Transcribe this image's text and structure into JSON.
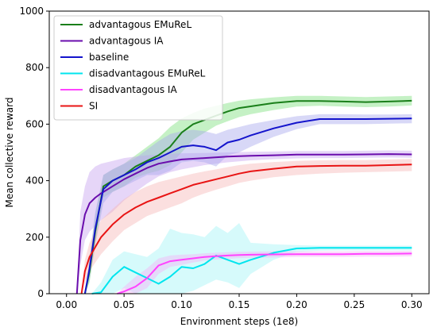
{
  "chart_data": {
    "type": "line",
    "title": "",
    "xlabel": "Environment steps (1e8)",
    "ylabel": "Mean collective reward",
    "xlim": [
      -0.015,
      0.315
    ],
    "ylim": [
      0,
      1000
    ],
    "xticks": [
      0.0,
      0.05,
      0.1,
      0.15,
      0.2,
      0.25,
      0.3
    ],
    "xtick_labels": [
      "0.00",
      "0.05",
      "0.10",
      "0.15",
      "0.20",
      "0.25",
      "0.30"
    ],
    "yticks": [
      0,
      200,
      400,
      600,
      800,
      1000
    ],
    "ytick_labels": [
      "0",
      "200",
      "400",
      "600",
      "800",
      "1000"
    ],
    "grid": false,
    "legend": "top-left",
    "series": [
      {
        "name": "advantagous EMuReL",
        "color": "#1a7f1a",
        "band_color": "#7ee07e",
        "x": [
          0.016,
          0.02,
          0.025,
          0.032,
          0.04,
          0.05,
          0.06,
          0.07,
          0.08,
          0.09,
          0.1,
          0.11,
          0.12,
          0.13,
          0.14,
          0.15,
          0.16,
          0.18,
          0.2,
          0.22,
          0.24,
          0.26,
          0.28,
          0.3
        ],
        "y": [
          0,
          80,
          220,
          380,
          400,
          420,
          450,
          470,
          490,
          520,
          570,
          600,
          615,
          630,
          645,
          657,
          663,
          675,
          682,
          682,
          680,
          678,
          680,
          683
        ],
        "upper": [
          0,
          120,
          280,
          420,
          440,
          460,
          490,
          520,
          550,
          590,
          620,
          640,
          655,
          665,
          675,
          683,
          688,
          695,
          700,
          700,
          698,
          696,
          698,
          700
        ],
        "lower": [
          0,
          40,
          170,
          340,
          360,
          380,
          410,
          425,
          435,
          455,
          500,
          545,
          570,
          595,
          610,
          625,
          635,
          650,
          662,
          665,
          662,
          660,
          662,
          666
        ]
      },
      {
        "name": "advantagous IA",
        "color": "#6a0dad",
        "band_color": "#c7a3f0",
        "x": [
          0.009,
          0.012,
          0.016,
          0.02,
          0.025,
          0.03,
          0.04,
          0.05,
          0.06,
          0.07,
          0.08,
          0.09,
          0.1,
          0.12,
          0.14,
          0.16,
          0.18,
          0.2,
          0.22,
          0.24,
          0.26,
          0.28,
          0.3
        ],
        "y": [
          0,
          190,
          280,
          320,
          340,
          355,
          380,
          405,
          425,
          445,
          460,
          468,
          475,
          480,
          485,
          488,
          490,
          492,
          492,
          492,
          493,
          494,
          493
        ],
        "upper": [
          0,
          290,
          380,
          430,
          450,
          460,
          470,
          480,
          485,
          490,
          493,
          495,
          497,
          498,
          500,
          502,
          503,
          505,
          505,
          505,
          506,
          507,
          506
        ],
        "lower": [
          0,
          100,
          190,
          220,
          240,
          260,
          290,
          330,
          360,
          390,
          415,
          430,
          440,
          455,
          465,
          472,
          476,
          479,
          480,
          480,
          481,
          482,
          481
        ]
      },
      {
        "name": "baseline",
        "color": "#1414cc",
        "band_color": "#a8a8ee",
        "x": [
          0.016,
          0.02,
          0.025,
          0.032,
          0.04,
          0.05,
          0.06,
          0.07,
          0.08,
          0.09,
          0.1,
          0.11,
          0.12,
          0.13,
          0.14,
          0.15,
          0.16,
          0.18,
          0.2,
          0.22,
          0.24,
          0.26,
          0.28,
          0.3
        ],
        "y": [
          0,
          90,
          230,
          370,
          400,
          420,
          440,
          465,
          480,
          500,
          520,
          525,
          520,
          508,
          535,
          545,
          560,
          585,
          605,
          618,
          618,
          618,
          619,
          620
        ],
        "upper": [
          0,
          130,
          290,
          420,
          440,
          460,
          480,
          510,
          540,
          565,
          575,
          580,
          575,
          565,
          580,
          590,
          600,
          615,
          628,
          635,
          635,
          634,
          634,
          635
        ],
        "lower": [
          0,
          50,
          170,
          320,
          360,
          380,
          400,
          420,
          420,
          435,
          465,
          470,
          465,
          450,
          490,
          500,
          520,
          555,
          582,
          600,
          600,
          600,
          602,
          603
        ]
      },
      {
        "name": "disadvantagous EMuReL",
        "color": "#00e5ee",
        "band_color": "#a5f4f7",
        "x": [
          0.022,
          0.03,
          0.04,
          0.05,
          0.06,
          0.07,
          0.08,
          0.09,
          0.1,
          0.11,
          0.12,
          0.13,
          0.14,
          0.15,
          0.16,
          0.18,
          0.2,
          0.22,
          0.24,
          0.26,
          0.28,
          0.3
        ],
        "y": [
          0,
          5,
          60,
          95,
          75,
          55,
          35,
          60,
          95,
          90,
          105,
          135,
          120,
          105,
          120,
          145,
          160,
          162,
          162,
          162,
          162,
          162
        ],
        "upper": [
          0,
          40,
          120,
          150,
          140,
          130,
          160,
          230,
          215,
          210,
          200,
          240,
          215,
          250,
          180,
          175,
          172,
          170,
          170,
          170,
          170,
          170
        ],
        "lower": [
          0,
          0,
          0,
          20,
          0,
          0,
          0,
          0,
          0,
          10,
          30,
          50,
          40,
          20,
          70,
          120,
          148,
          152,
          153,
          153,
          153,
          153
        ]
      },
      {
        "name": "disadvantagous IA",
        "color": "#ff44ff",
        "band_color": "#f7b4f7",
        "x": [
          0.044,
          0.05,
          0.06,
          0.07,
          0.08,
          0.09,
          0.1,
          0.11,
          0.12,
          0.13,
          0.14,
          0.15,
          0.16,
          0.18,
          0.2,
          0.22,
          0.24,
          0.26,
          0.28,
          0.3
        ],
        "y": [
          0,
          8,
          25,
          55,
          100,
          115,
          120,
          125,
          130,
          133,
          135,
          137,
          138,
          139,
          140,
          140,
          140,
          141,
          141,
          142
        ],
        "upper": [
          0,
          25,
          60,
          90,
          125,
          135,
          138,
          140,
          143,
          145,
          147,
          148,
          149,
          150,
          150,
          150,
          150,
          151,
          151,
          152
        ],
        "lower": [
          0,
          0,
          0,
          20,
          70,
          95,
          102,
          110,
          117,
          121,
          123,
          126,
          127,
          128,
          130,
          130,
          130,
          131,
          131,
          132
        ]
      },
      {
        "name": "SI",
        "color": "#e81414",
        "band_color": "#f7b8b8",
        "x": [
          0.013,
          0.016,
          0.02,
          0.025,
          0.03,
          0.04,
          0.05,
          0.06,
          0.07,
          0.08,
          0.09,
          0.1,
          0.11,
          0.12,
          0.13,
          0.14,
          0.15,
          0.16,
          0.18,
          0.2,
          0.22,
          0.24,
          0.26,
          0.28,
          0.3
        ],
        "y": [
          0,
          80,
          130,
          165,
          200,
          245,
          280,
          305,
          325,
          340,
          355,
          370,
          385,
          395,
          405,
          415,
          425,
          433,
          442,
          450,
          452,
          453,
          453,
          455,
          457
        ],
        "upper": [
          0,
          120,
          180,
          220,
          260,
          300,
          335,
          360,
          380,
          395,
          405,
          415,
          425,
          433,
          440,
          448,
          455,
          460,
          466,
          470,
          472,
          473,
          473,
          475,
          477
        ],
        "lower": [
          0,
          40,
          80,
          110,
          140,
          185,
          225,
          250,
          275,
          290,
          305,
          320,
          340,
          355,
          368,
          380,
          392,
          400,
          412,
          420,
          425,
          428,
          430,
          432,
          434
        ]
      }
    ]
  }
}
